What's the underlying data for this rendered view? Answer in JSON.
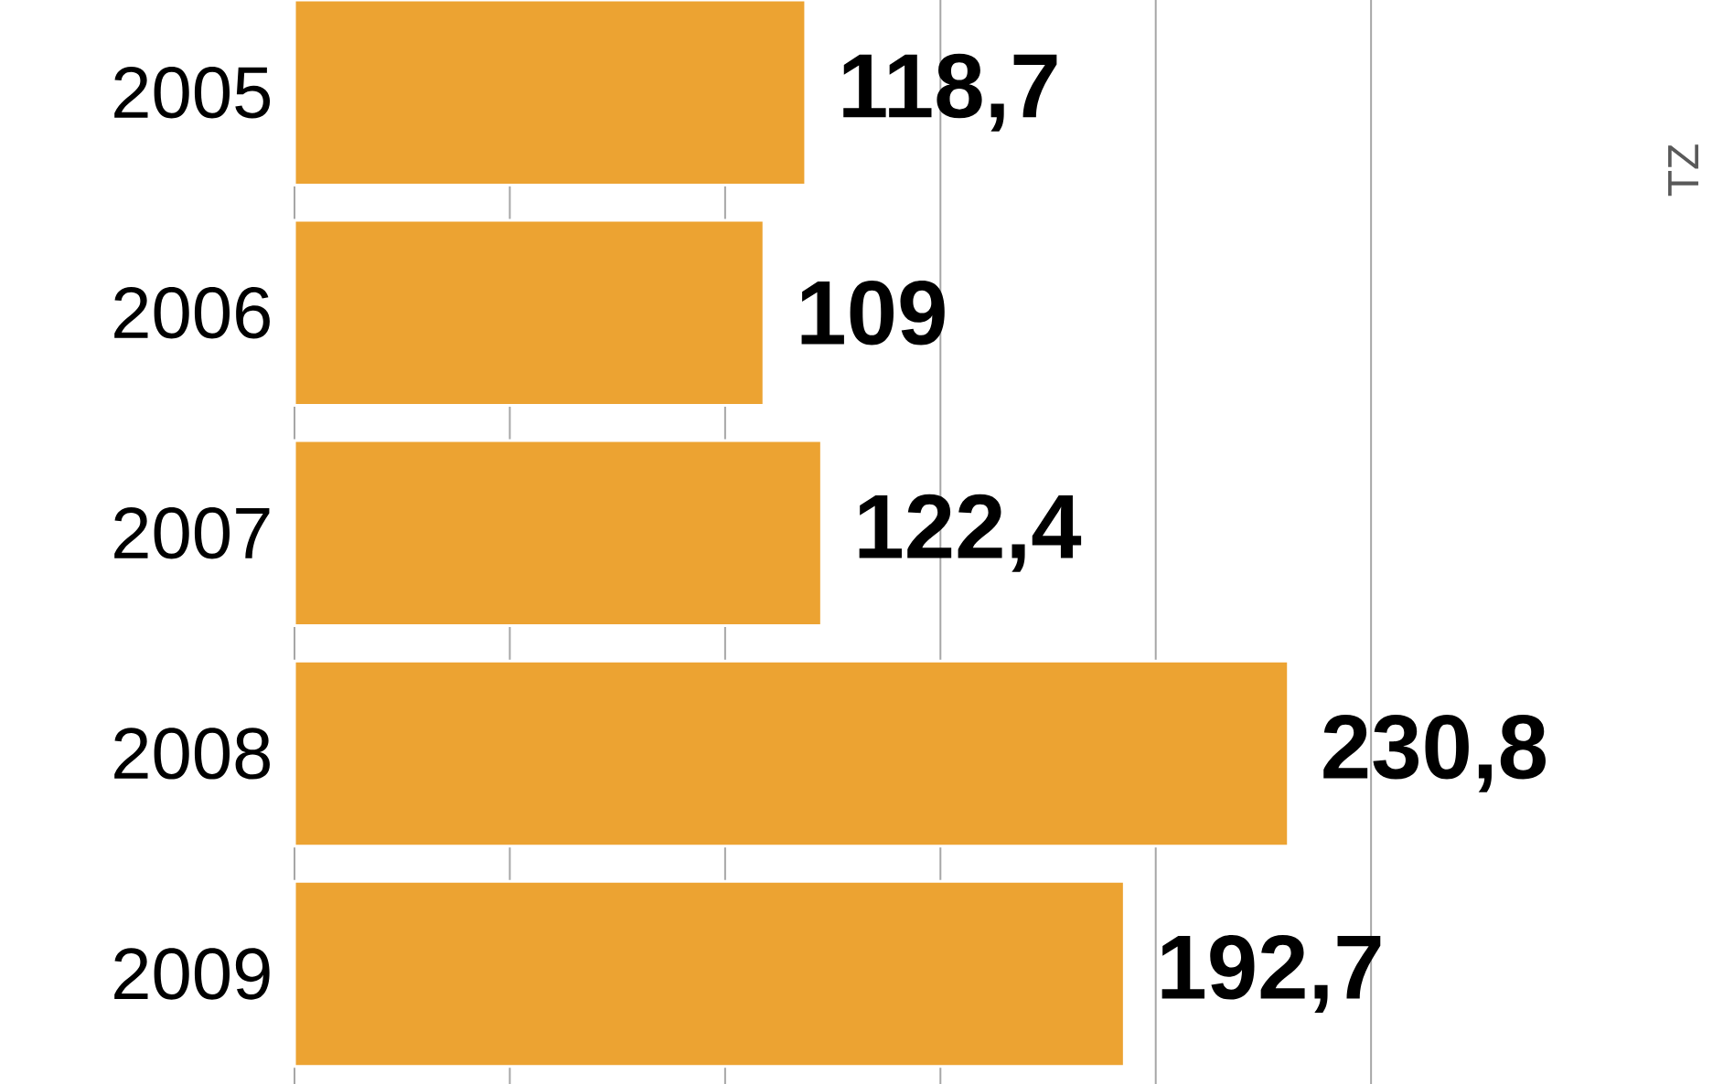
{
  "chart_data": {
    "type": "bar",
    "orientation": "horizontal",
    "categories": [
      "2005",
      "2006",
      "2007",
      "2008",
      "2009"
    ],
    "values": [
      118.7,
      109,
      122.4,
      230.8,
      192.7
    ],
    "value_labels": [
      "118,7",
      "109",
      "122,4",
      "230,8",
      "192,7"
    ],
    "color": "#eca332",
    "xticks": [
      {
        "value": 0,
        "label": null
      },
      {
        "value": 50,
        "label": null
      },
      {
        "value": 100,
        "label": null
      },
      {
        "value": 150,
        "label": null
      },
      {
        "value": 200,
        "label": null
      },
      {
        "value": 250,
        "label": null
      }
    ],
    "grid": "x",
    "tick_labels": "y",
    "annotations": [
      "TZ"
    ]
  }
}
